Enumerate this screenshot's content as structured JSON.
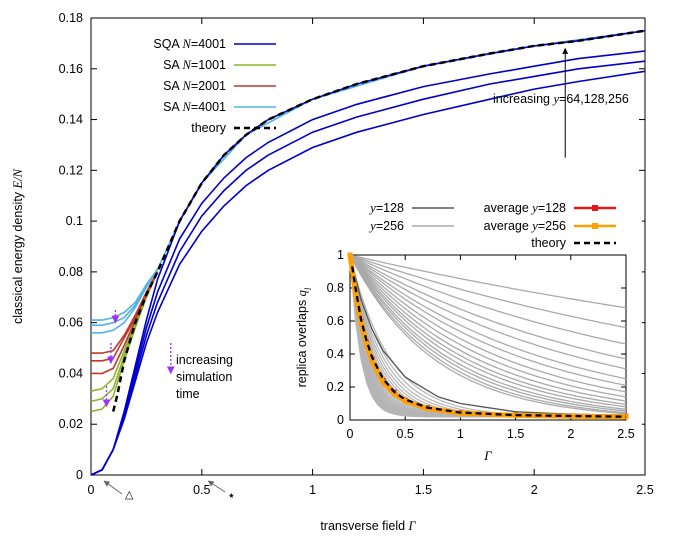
{
  "chart_data": [
    {
      "type": "line",
      "xlabel": "transverse field Γ",
      "ylabel": "classical energy density E/N",
      "xlim": [
        0,
        2.5
      ],
      "ylim": [
        0,
        0.18
      ],
      "xticks": [
        "0",
        "0.5",
        "1",
        "1.5",
        "2",
        "2.5"
      ],
      "yticks": [
        "0",
        "0.02",
        "0.04",
        "0.06",
        "0.08",
        "0.1",
        "0.12",
        "0.14",
        "0.16",
        "0.18"
      ],
      "grid": false,
      "legend_position": "top-left",
      "colors": {
        "sqa": "#0000cc",
        "sa1001": "#8db52b",
        "sa2001": "#c0392b",
        "sa4001": "#4fb3e6",
        "theory": "#000000",
        "arrow": "#9b30ff"
      },
      "series": [
        {
          "name": "SQA N=4001",
          "style": "solid",
          "curves": [
            {
              "x": [
                0,
                0.05,
                0.1,
                0.15,
                0.2,
                0.25,
                0.3,
                0.4,
                0.5,
                0.6,
                0.7,
                0.8,
                1.0,
                1.2,
                1.5,
                1.8,
                2.0,
                2.2,
                2.5
              ],
              "y": [
                0,
                0.002,
                0.01,
                0.025,
                0.043,
                0.061,
                0.077,
                0.1,
                0.115,
                0.126,
                0.134,
                0.14,
                0.148,
                0.154,
                0.161,
                0.166,
                0.169,
                0.171,
                0.175
              ]
            },
            {
              "x": [
                0,
                0.05,
                0.1,
                0.15,
                0.2,
                0.25,
                0.3,
                0.4,
                0.5,
                0.6,
                0.7,
                0.8,
                1.0,
                1.2,
                1.5,
                1.8,
                2.0,
                2.2,
                2.5
              ],
              "y": [
                0,
                0.002,
                0.01,
                0.024,
                0.041,
                0.058,
                0.072,
                0.093,
                0.107,
                0.117,
                0.125,
                0.131,
                0.14,
                0.146,
                0.153,
                0.158,
                0.161,
                0.164,
                0.167
              ]
            },
            {
              "x": [
                0,
                0.05,
                0.1,
                0.15,
                0.2,
                0.25,
                0.3,
                0.4,
                0.5,
                0.6,
                0.7,
                0.8,
                1.0,
                1.2,
                1.5,
                1.8,
                2.0,
                2.2,
                2.5
              ],
              "y": [
                0,
                0.002,
                0.01,
                0.023,
                0.039,
                0.055,
                0.068,
                0.088,
                0.102,
                0.112,
                0.12,
                0.126,
                0.135,
                0.141,
                0.148,
                0.154,
                0.157,
                0.16,
                0.163
              ]
            },
            {
              "x": [
                0,
                0.05,
                0.1,
                0.15,
                0.2,
                0.25,
                0.3,
                0.4,
                0.5,
                0.6,
                0.7,
                0.8,
                1.0,
                1.2,
                1.5,
                1.8,
                2.0,
                2.2,
                2.5
              ],
              "y": [
                0,
                0.002,
                0.01,
                0.022,
                0.037,
                0.052,
                0.064,
                0.083,
                0.096,
                0.106,
                0.114,
                0.12,
                0.129,
                0.135,
                0.142,
                0.148,
                0.152,
                0.155,
                0.159
              ]
            }
          ]
        },
        {
          "name": "SA N=1001",
          "style": "solid",
          "curves": [
            {
              "x": [
                0,
                0.05,
                0.1,
                0.15,
                0.2,
                0.25,
                0.3
              ],
              "y": [
                0.025,
                0.026,
                0.031,
                0.045,
                0.058,
                0.07,
                0.08
              ]
            },
            {
              "x": [
                0,
                0.05,
                0.1,
                0.15,
                0.2,
                0.25,
                0.3
              ],
              "y": [
                0.029,
                0.03,
                0.034,
                0.047,
                0.059,
                0.07,
                0.08
              ]
            },
            {
              "x": [
                0,
                0.05,
                0.1,
                0.15,
                0.2,
                0.25,
                0.3
              ],
              "y": [
                0.033,
                0.034,
                0.038,
                0.049,
                0.06,
                0.071,
                0.08
              ]
            }
          ]
        },
        {
          "name": "SA N=2001",
          "style": "solid",
          "curves": [
            {
              "x": [
                0,
                0.05,
                0.1,
                0.15,
                0.2,
                0.25,
                0.3
              ],
              "y": [
                0.04,
                0.04,
                0.042,
                0.051,
                0.061,
                0.071,
                0.08
              ]
            },
            {
              "x": [
                0,
                0.05,
                0.1,
                0.15,
                0.2,
                0.25,
                0.3
              ],
              "y": [
                0.045,
                0.045,
                0.046,
                0.054,
                0.062,
                0.072,
                0.08
              ]
            },
            {
              "x": [
                0,
                0.05,
                0.1,
                0.15,
                0.2,
                0.25,
                0.3
              ],
              "y": [
                0.048,
                0.048,
                0.049,
                0.055,
                0.063,
                0.072,
                0.08
              ]
            }
          ]
        },
        {
          "name": "SA N=4001",
          "style": "solid",
          "curves": [
            {
              "x": [
                0,
                0.05,
                0.1,
                0.15,
                0.2,
                0.25,
                0.3,
                0.4,
                0.5,
                0.7,
                1.0,
                1.5,
                2.0,
                2.5
              ],
              "y": [
                0.056,
                0.056,
                0.057,
                0.06,
                0.066,
                0.074,
                0.081,
                0.1,
                0.115,
                0.134,
                0.148,
                0.161,
                0.169,
                0.175
              ]
            },
            {
              "x": [
                0,
                0.05,
                0.1,
                0.15,
                0.2,
                0.25,
                0.3
              ],
              "y": [
                0.059,
                0.059,
                0.06,
                0.062,
                0.067,
                0.074,
                0.081
              ]
            },
            {
              "x": [
                0,
                0.05,
                0.1,
                0.15,
                0.2,
                0.25,
                0.3
              ],
              "y": [
                0.061,
                0.061,
                0.062,
                0.064,
                0.068,
                0.075,
                0.081
              ]
            }
          ]
        },
        {
          "name": "theory",
          "style": "dashed",
          "curves": [
            {
              "x": [
                0.1,
                0.12,
                0.15,
                0.2,
                0.25,
                0.3,
                0.4,
                0.5,
                0.6,
                0.7,
                0.8,
                1.0,
                1.2,
                1.5,
                1.8,
                2.0,
                2.2,
                2.5
              ],
              "y": [
                0.025,
                0.032,
                0.045,
                0.06,
                0.071,
                0.08,
                0.1,
                0.115,
                0.126,
                0.134,
                0.14,
                0.148,
                0.154,
                0.161,
                0.166,
                0.169,
                0.171,
                0.175
              ]
            }
          ]
        }
      ],
      "annotations": [
        {
          "text": "increasing y=64,128,256",
          "prefix": "increasing ",
          "var": "y",
          "suffix": "=64,128,256"
        },
        {
          "lines": [
            "increasing",
            "simulation",
            "time"
          ]
        },
        {
          "text": "△"
        },
        {
          "text": "⋆"
        }
      ]
    },
    {
      "type": "line",
      "xlabel": "Γ",
      "ylabel": "replica overlaps q_l",
      "xlim": [
        0,
        2.5
      ],
      "ylim": [
        0,
        1
      ],
      "xticks": [
        "0",
        "0.5",
        "1",
        "1.5",
        "2",
        "2.5"
      ],
      "yticks": [
        "0",
        "0.2",
        "0.4",
        "0.6",
        "0.8",
        "1"
      ],
      "legend_position": "top",
      "colors": {
        "y128": "#555555",
        "y256": "#aaaaaa",
        "avg128": "#e31a1c",
        "avg256": "#ff9f00",
        "theory": "#000000"
      },
      "series": [
        {
          "name": "y=128",
          "style": "solid",
          "curves": [
            {
              "x": [
                0,
                0.1,
                0.2,
                0.3,
                0.5,
                0.8,
                1.0,
                1.5,
                2.0,
                2.5
              ],
              "y": [
                1,
                0.73,
                0.55,
                0.42,
                0.26,
                0.14,
                0.1,
                0.05,
                0.035,
                0.03
              ]
            }
          ]
        },
        {
          "name": "y=256",
          "style": "solid",
          "curves": [
            {
              "x": [
                0,
                2.5
              ],
              "y": [
                1,
                0.68
              ]
            },
            {
              "x": [
                0,
                2.5
              ],
              "y": [
                1,
                0.56
              ]
            },
            {
              "x": [
                0,
                2.5
              ],
              "y": [
                1,
                0.46
              ]
            },
            {
              "x": [
                0,
                2.5
              ],
              "y": [
                1,
                0.37
              ]
            },
            {
              "x": [
                0,
                2.5
              ],
              "y": [
                1,
                0.31
              ]
            },
            {
              "x": [
                0,
                2.5
              ],
              "y": [
                1,
                0.25
              ]
            },
            {
              "x": [
                0,
                2.5
              ],
              "y": [
                1,
                0.21
              ]
            },
            {
              "x": [
                0,
                2.5
              ],
              "y": [
                1,
                0.17
              ]
            },
            {
              "x": [
                0,
                2.5
              ],
              "y": [
                1,
                0.14
              ]
            },
            {
              "x": [
                0,
                2.5
              ],
              "y": [
                1,
                0.115
              ]
            },
            {
              "x": [
                0,
                2.5
              ],
              "y": [
                1,
                0.095
              ]
            },
            {
              "x": [
                0,
                2.5
              ],
              "y": [
                1,
                0.08
              ]
            },
            {
              "x": [
                0,
                2.5
              ],
              "y": [
                1,
                0.065
              ]
            },
            {
              "x": [
                0,
                2.5
              ],
              "y": [
                1,
                0.055
              ]
            },
            {
              "x": [
                0,
                2.5
              ],
              "y": [
                1,
                0.045
              ]
            },
            {
              "x": [
                0,
                2.5
              ],
              "y": [
                1,
                0.038
              ]
            }
          ]
        },
        {
          "name": "average y=128",
          "style": "line-points",
          "curves": [
            {
              "x": [
                0,
                0.05,
                0.1,
                0.15,
                0.2,
                0.3,
                0.4,
                0.5,
                0.7,
                1.0,
                1.5,
                2.0,
                2.5
              ],
              "y": [
                1,
                0.78,
                0.6,
                0.47,
                0.37,
                0.24,
                0.17,
                0.12,
                0.075,
                0.045,
                0.03,
                0.025,
                0.022
              ]
            }
          ]
        },
        {
          "name": "average y=256",
          "style": "line-points",
          "curves": [
            {
              "x": [
                0,
                0.05,
                0.1,
                0.15,
                0.2,
                0.3,
                0.4,
                0.5,
                0.7,
                1.0,
                1.5,
                2.0,
                2.5
              ],
              "y": [
                1,
                0.77,
                0.59,
                0.46,
                0.36,
                0.23,
                0.16,
                0.115,
                0.07,
                0.042,
                0.028,
                0.023,
                0.02
              ]
            }
          ]
        },
        {
          "name": "theory",
          "style": "dashed",
          "curves": [
            {
              "x": [
                0.02,
                0.05,
                0.1,
                0.15,
                0.2,
                0.3,
                0.4,
                0.5,
                0.7,
                1.0,
                1.5,
                2.0,
                2.5
              ],
              "y": [
                0.93,
                0.8,
                0.61,
                0.48,
                0.38,
                0.25,
                0.17,
                0.125,
                0.075,
                0.045,
                0.03,
                0.024,
                0.02
              ]
            }
          ]
        }
      ]
    }
  ]
}
